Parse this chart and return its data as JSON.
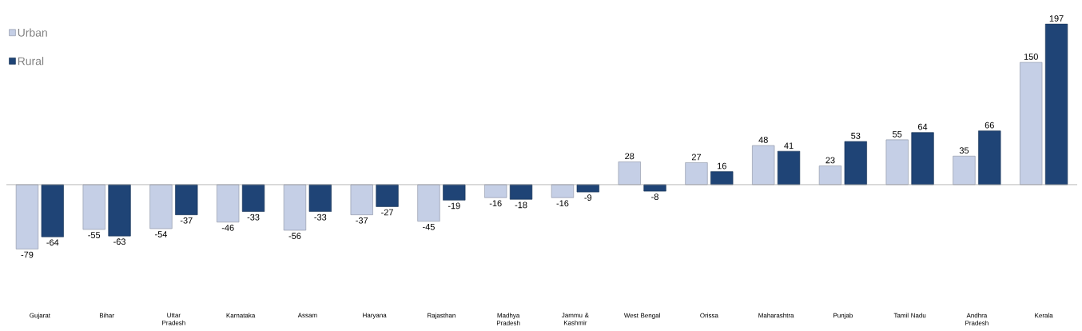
{
  "chart_data": {
    "type": "bar",
    "categories": [
      "Gujarat",
      "Bihar",
      "Uttar Pradesh",
      "Karnataka",
      "Assam",
      "Haryana",
      "Rajasthan",
      "Madhya Pradesh",
      "Jammu & Kashmir",
      "West Bengal",
      "Orissa",
      "Maharashtra",
      "Punjab",
      "Tamil Nadu",
      "Andhra Pradesh",
      "Kerala"
    ],
    "series": [
      {
        "name": "Urban",
        "color": "#c5cfe6",
        "values": [
          -79,
          -55,
          -54,
          -46,
          -56,
          -37,
          -45,
          -16,
          -16,
          28,
          27,
          48,
          23,
          55,
          35,
          150
        ]
      },
      {
        "name": "Rural",
        "color": "#1f4476",
        "values": [
          -64,
          -63,
          -37,
          -33,
          -33,
          -27,
          -19,
          -18,
          -9,
          -8,
          16,
          41,
          53,
          64,
          66,
          197
        ]
      }
    ],
    "data_labels": true,
    "legend": "top left"
  }
}
